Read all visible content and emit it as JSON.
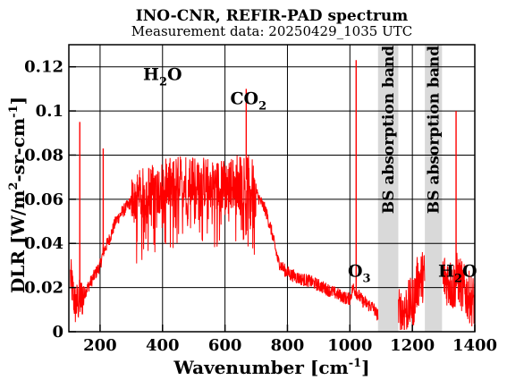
{
  "chart_data": {
    "type": "line",
    "title": "INO-CNR, REFIR-PAD spectrum",
    "subtitle": "Measurement data: 20250429_1035 UTC",
    "xlabel": "Wavenumber [cm-1]",
    "ylabel": "DLR [W/m2-sr-cm-1]",
    "xlim": [
      100,
      1400
    ],
    "ylim": [
      0,
      0.13
    ],
    "xticks": [
      200,
      400,
      600,
      800,
      1000,
      1200,
      1400
    ],
    "yticks": [
      0,
      0.02,
      0.04,
      0.06,
      0.08,
      0.1,
      0.12
    ],
    "grid": true,
    "series_color": "#ff0000",
    "band_color": "#d9d9d9",
    "bands": [
      {
        "label": "BS absorption band",
        "x_range": [
          1090,
          1155
        ]
      },
      {
        "label": "BS absorption band",
        "x_range": [
          1240,
          1295
        ]
      }
    ],
    "annotations": [
      {
        "base": "H",
        "sub": "2",
        "rest": "O",
        "x": 400,
        "y": 0.114
      },
      {
        "base": "CO",
        "sub": "2",
        "rest": "",
        "x": 675,
        "y": 0.103
      },
      {
        "base": "O",
        "sub": "3",
        "rest": "",
        "x": 1030,
        "y": 0.025
      },
      {
        "base": "H",
        "sub": "2",
        "rest": "O",
        "x": 1345,
        "y": 0.025
      }
    ],
    "series": [
      {
        "x": [
          105,
          120,
          140,
          160,
          180,
          200,
          210,
          230,
          250,
          270,
          300,
          330,
          360,
          400,
          450,
          500,
          550,
          600,
          630,
          660,
          690,
          710,
          730,
          750,
          770,
          790,
          810,
          840,
          870,
          900,
          930,
          960,
          990,
          1000,
          1010,
          1020,
          1040,
          1060,
          1075,
          1085,
          1160,
          1175,
          1190,
          1205,
          1215,
          1230,
          1300,
          1315,
          1330,
          1345,
          1360,
          1380,
          1400
        ],
        "y": [
          0.025,
          0.012,
          0.015,
          0.02,
          0.025,
          0.03,
          0.036,
          0.042,
          0.05,
          0.054,
          0.059,
          0.062,
          0.064,
          0.066,
          0.068,
          0.069,
          0.067,
          0.066,
          0.068,
          0.07,
          0.066,
          0.06,
          0.055,
          0.045,
          0.032,
          0.028,
          0.026,
          0.024,
          0.023,
          0.021,
          0.019,
          0.017,
          0.015,
          0.015,
          0.02,
          0.018,
          0.014,
          0.012,
          0.011,
          0.008,
          0.008,
          0.01,
          0.012,
          0.014,
          0.022,
          0.025,
          0.025,
          0.023,
          0.02,
          0.025,
          0.02,
          0.016,
          0.013
        ]
      }
    ],
    "peaks": [
      {
        "x": 135,
        "y": 0.095
      },
      {
        "x": 210,
        "y": 0.083
      },
      {
        "x": 668,
        "y": 0.11
      },
      {
        "x": 1020,
        "y": 0.123
      },
      {
        "x": 1340,
        "y": 0.1
      }
    ]
  }
}
